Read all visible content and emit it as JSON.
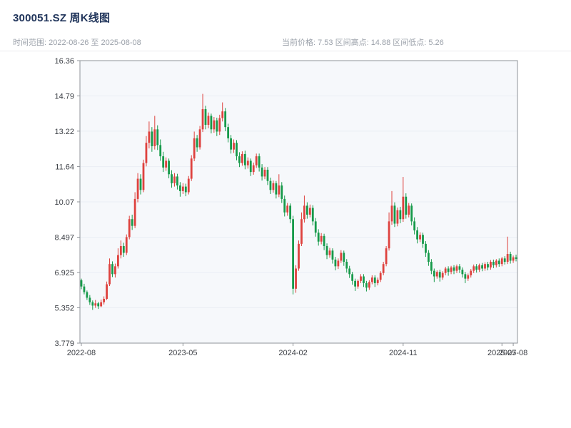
{
  "header": {
    "title": "300051.SZ 周K线图",
    "subtitle_left": "时间范围: 2022-08-26 至 2025-08-08",
    "subtitle_right": "当前价格: 7.53  区间高点: 14.88  区间低点: 5.26"
  },
  "chart_data": {
    "type": "candlestick",
    "symbol": "300051.SZ",
    "period": "weekly",
    "start_date": "2022-08-26",
    "end_date": "2025-08-08",
    "current_price": 7.53,
    "range_high": 14.88,
    "range_low": 5.26,
    "y_range": [
      3.779,
      16.36
    ],
    "y_ticks": [
      {
        "label": "16.36",
        "value": 16.36
      },
      {
        "label": "14.79",
        "value": 14.79
      },
      {
        "label": "13.22",
        "value": 13.22
      },
      {
        "label": "11.64",
        "value": 11.64
      },
      {
        "label": "10.07",
        "value": 10.07
      },
      {
        "label": "8.497",
        "value": 8.497
      },
      {
        "label": "6.925",
        "value": 6.925
      },
      {
        "label": "5.352",
        "value": 5.352
      },
      {
        "label": "3.779",
        "value": 3.779
      }
    ],
    "x_ticks": [
      {
        "label": "2022-08",
        "index": 0
      },
      {
        "label": "2023-05",
        "index": 36
      },
      {
        "label": "2024-02",
        "index": 75
      },
      {
        "label": "2024-11",
        "index": 114
      },
      {
        "label": "2025-07",
        "index": 149
      },
      {
        "label": "2025-08",
        "index": 153
      }
    ],
    "colors": {
      "up": "#de423e",
      "down": "#169a4a",
      "plot_bg": "#f6f8fb",
      "grid": "#eaeef4",
      "axis_line": "#8f9399",
      "tick_text": "#3d4046",
      "title": "#22365c",
      "subtitle": "#9aa0a9"
    },
    "candles": [
      [
        6.58,
        6.65,
        6.18,
        6.3
      ],
      [
        6.3,
        6.42,
        5.95,
        6.05
      ],
      [
        6.05,
        6.12,
        5.7,
        5.8
      ],
      [
        5.8,
        5.92,
        5.48,
        5.6
      ],
      [
        5.6,
        5.68,
        5.26,
        5.45
      ],
      [
        5.45,
        5.7,
        5.35,
        5.55
      ],
      [
        5.55,
        5.62,
        5.3,
        5.42
      ],
      [
        5.42,
        5.72,
        5.38,
        5.6
      ],
      [
        5.6,
        5.86,
        5.5,
        5.75
      ],
      [
        5.75,
        6.52,
        5.7,
        6.4
      ],
      [
        6.4,
        7.55,
        6.32,
        7.3
      ],
      [
        7.3,
        7.42,
        6.72,
        6.85
      ],
      [
        6.85,
        7.32,
        6.7,
        7.2
      ],
      [
        7.2,
        8.0,
        7.1,
        7.7
      ],
      [
        7.7,
        8.35,
        7.55,
        8.1
      ],
      [
        8.1,
        8.25,
        7.62,
        7.8
      ],
      [
        7.8,
        8.62,
        7.7,
        8.5
      ],
      [
        8.5,
        9.45,
        8.4,
        9.3
      ],
      [
        9.3,
        9.5,
        8.82,
        9.0
      ],
      [
        9.0,
        10.5,
        8.9,
        10.2
      ],
      [
        10.2,
        11.35,
        10.05,
        11.1
      ],
      [
        11.1,
        11.3,
        10.4,
        10.6
      ],
      [
        10.6,
        11.95,
        10.5,
        11.8
      ],
      [
        11.8,
        13.0,
        11.65,
        12.7
      ],
      [
        12.7,
        13.65,
        12.45,
        13.2
      ],
      [
        13.2,
        13.4,
        12.3,
        12.55
      ],
      [
        12.55,
        13.9,
        12.4,
        13.3
      ],
      [
        13.3,
        13.48,
        12.38,
        12.6
      ],
      [
        12.6,
        12.85,
        11.9,
        12.1
      ],
      [
        12.1,
        12.3,
        11.4,
        11.6
      ],
      [
        11.6,
        12.05,
        11.45,
        11.9
      ],
      [
        11.9,
        12.0,
        11.12,
        11.3
      ],
      [
        11.3,
        11.48,
        10.7,
        10.9
      ],
      [
        10.9,
        11.35,
        10.75,
        11.2
      ],
      [
        11.2,
        11.32,
        10.62,
        10.8
      ],
      [
        10.8,
        10.95,
        10.3,
        10.55
      ],
      [
        10.55,
        10.9,
        10.42,
        10.75
      ],
      [
        10.75,
        10.88,
        10.32,
        10.5
      ],
      [
        10.5,
        11.22,
        10.4,
        11.1
      ],
      [
        11.1,
        12.15,
        11.0,
        12.0
      ],
      [
        12.0,
        13.2,
        11.88,
        12.9
      ],
      [
        12.9,
        13.05,
        12.3,
        12.5
      ],
      [
        12.5,
        13.45,
        12.4,
        13.3
      ],
      [
        13.3,
        14.88,
        13.18,
        14.2
      ],
      [
        14.2,
        14.35,
        13.3,
        13.5
      ],
      [
        13.5,
        14.05,
        13.35,
        13.9
      ],
      [
        13.9,
        14.0,
        13.12,
        13.3
      ],
      [
        13.3,
        13.85,
        13.15,
        13.7
      ],
      [
        13.7,
        13.82,
        13.0,
        13.2
      ],
      [
        13.2,
        13.95,
        13.05,
        13.8
      ],
      [
        13.8,
        14.5,
        13.65,
        14.1
      ],
      [
        14.1,
        14.25,
        13.22,
        13.4
      ],
      [
        13.4,
        13.55,
        12.72,
        12.9
      ],
      [
        12.9,
        13.05,
        12.22,
        12.4
      ],
      [
        12.4,
        12.85,
        12.25,
        12.7
      ],
      [
        12.7,
        12.82,
        11.92,
        12.1
      ],
      [
        12.1,
        12.28,
        11.62,
        11.8
      ],
      [
        11.8,
        12.32,
        11.68,
        12.2
      ],
      [
        12.2,
        12.35,
        11.52,
        11.7
      ],
      [
        11.7,
        12.05,
        11.55,
        11.9
      ],
      [
        11.9,
        12.0,
        11.22,
        11.4
      ],
      [
        11.4,
        11.82,
        11.28,
        11.7
      ],
      [
        11.7,
        12.22,
        11.58,
        12.1
      ],
      [
        12.1,
        12.22,
        11.42,
        11.6
      ],
      [
        11.6,
        11.75,
        11.02,
        11.2
      ],
      [
        11.2,
        11.62,
        11.08,
        11.5
      ],
      [
        11.5,
        11.62,
        10.82,
        11.0
      ],
      [
        11.0,
        11.15,
        10.42,
        10.6
      ],
      [
        10.6,
        11.02,
        10.48,
        10.9
      ],
      [
        10.9,
        11.0,
        10.22,
        10.4
      ],
      [
        10.4,
        11.3,
        10.28,
        10.8
      ],
      [
        10.8,
        10.95,
        10.02,
        10.2
      ],
      [
        10.2,
        10.35,
        9.42,
        9.6
      ],
      [
        9.6,
        10.02,
        9.45,
        9.9
      ],
      [
        9.9,
        10.0,
        9.12,
        9.3
      ],
      [
        9.3,
        9.45,
        5.95,
        6.2
      ],
      [
        6.2,
        7.25,
        6.02,
        7.1
      ],
      [
        7.1,
        8.35,
        7.0,
        8.2
      ],
      [
        8.2,
        9.6,
        8.1,
        9.3
      ],
      [
        9.3,
        10.35,
        9.15,
        9.9
      ],
      [
        9.9,
        10.05,
        9.32,
        9.5
      ],
      [
        9.5,
        9.95,
        9.38,
        9.8
      ],
      [
        9.8,
        9.92,
        9.02,
        9.2
      ],
      [
        9.2,
        9.35,
        8.52,
        8.7
      ],
      [
        8.7,
        8.85,
        8.12,
        8.3
      ],
      [
        8.3,
        8.68,
        8.18,
        8.55
      ],
      [
        8.55,
        8.65,
        7.92,
        8.1
      ],
      [
        8.1,
        8.22,
        7.52,
        7.7
      ],
      [
        7.7,
        8.02,
        7.58,
        7.9
      ],
      [
        7.9,
        8.0,
        7.32,
        7.5
      ],
      [
        7.5,
        7.62,
        7.02,
        7.2
      ],
      [
        7.2,
        7.55,
        7.08,
        7.45
      ],
      [
        7.45,
        7.92,
        7.35,
        7.8
      ],
      [
        7.8,
        7.9,
        7.22,
        7.4
      ],
      [
        7.4,
        7.52,
        6.92,
        7.1
      ],
      [
        7.1,
        7.22,
        6.68,
        6.85
      ],
      [
        6.85,
        6.95,
        6.38,
        6.55
      ],
      [
        6.55,
        6.65,
        6.1,
        6.3
      ],
      [
        6.3,
        6.62,
        6.2,
        6.55
      ],
      [
        6.55,
        6.85,
        6.45,
        6.75
      ],
      [
        6.75,
        6.85,
        6.28,
        6.45
      ],
      [
        6.45,
        6.55,
        6.08,
        6.25
      ],
      [
        6.25,
        6.58,
        6.15,
        6.5
      ],
      [
        6.5,
        6.8,
        6.4,
        6.7
      ],
      [
        6.7,
        6.8,
        6.28,
        6.45
      ],
      [
        6.45,
        6.7,
        6.35,
        6.6
      ],
      [
        6.6,
        6.98,
        6.5,
        6.9
      ],
      [
        6.9,
        7.4,
        6.8,
        7.3
      ],
      [
        7.3,
        8.1,
        7.2,
        8.0
      ],
      [
        8.0,
        9.6,
        7.9,
        9.2
      ],
      [
        9.2,
        10.55,
        9.05,
        9.9
      ],
      [
        9.9,
        10.05,
        8.95,
        9.1
      ],
      [
        9.1,
        9.82,
        8.98,
        9.7
      ],
      [
        9.7,
        9.85,
        9.12,
        9.3
      ],
      [
        9.3,
        11.18,
        9.18,
        10.3
      ],
      [
        10.3,
        10.45,
        9.32,
        9.5
      ],
      [
        9.5,
        10.02,
        9.38,
        9.9
      ],
      [
        9.9,
        10.0,
        9.02,
        9.2
      ],
      [
        9.2,
        9.38,
        8.62,
        8.8
      ],
      [
        8.8,
        8.95,
        8.22,
        8.4
      ],
      [
        8.4,
        8.72,
        8.28,
        8.6
      ],
      [
        8.6,
        8.7,
        8.02,
        8.2
      ],
      [
        8.2,
        8.32,
        7.62,
        7.8
      ],
      [
        7.8,
        7.92,
        7.22,
        7.4
      ],
      [
        7.4,
        7.52,
        6.85,
        7.0
      ],
      [
        7.0,
        7.1,
        6.5,
        6.75
      ],
      [
        6.75,
        7.02,
        6.65,
        6.95
      ],
      [
        6.95,
        7.05,
        6.52,
        6.7
      ],
      [
        6.7,
        6.98,
        6.6,
        6.9
      ],
      [
        6.9,
        7.18,
        6.8,
        7.1
      ],
      [
        7.1,
        7.2,
        6.78,
        6.95
      ],
      [
        6.95,
        7.22,
        6.85,
        7.15
      ],
      [
        7.15,
        7.25,
        6.85,
        7.0
      ],
      [
        7.0,
        7.28,
        6.9,
        7.2
      ],
      [
        7.2,
        7.3,
        6.9,
        7.05
      ],
      [
        7.05,
        7.15,
        6.7,
        6.85
      ],
      [
        6.85,
        6.95,
        6.45,
        6.65
      ],
      [
        6.65,
        6.88,
        6.55,
        6.8
      ],
      [
        6.8,
        7.08,
        6.7,
        7.0
      ],
      [
        7.0,
        7.28,
        6.9,
        7.2
      ],
      [
        7.2,
        7.3,
        6.92,
        7.05
      ],
      [
        7.05,
        7.32,
        6.95,
        7.25
      ],
      [
        7.25,
        7.35,
        6.98,
        7.1
      ],
      [
        7.1,
        7.38,
        7.0,
        7.3
      ],
      [
        7.3,
        7.4,
        7.02,
        7.15
      ],
      [
        7.15,
        7.48,
        7.05,
        7.4
      ],
      [
        7.4,
        7.5,
        7.12,
        7.25
      ],
      [
        7.25,
        7.52,
        7.15,
        7.45
      ],
      [
        7.45,
        7.55,
        7.18,
        7.3
      ],
      [
        7.3,
        7.62,
        7.2,
        7.55
      ],
      [
        7.55,
        7.65,
        7.28,
        7.4
      ],
      [
        7.4,
        8.52,
        7.3,
        7.75
      ],
      [
        7.75,
        7.85,
        7.32,
        7.45
      ],
      [
        7.45,
        7.68,
        7.35,
        7.6
      ],
      [
        7.6,
        7.72,
        7.42,
        7.53
      ]
    ]
  }
}
